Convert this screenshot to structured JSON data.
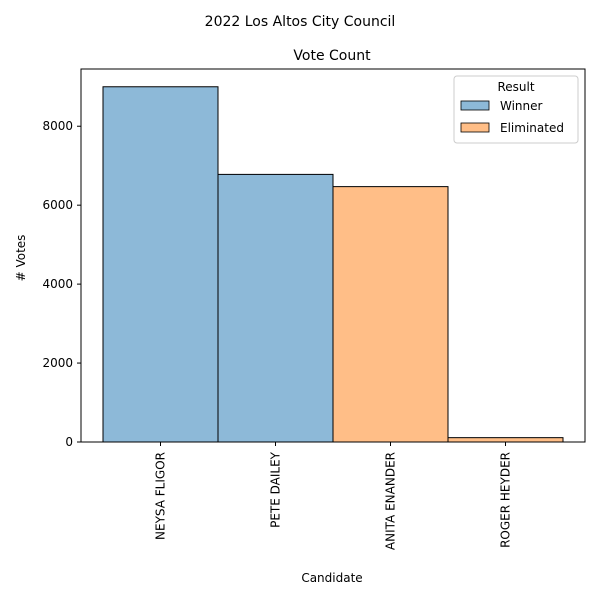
{
  "chart_data": {
    "type": "bar",
    "suptitle": "2022 Los Altos City Council",
    "title": "Vote Count",
    "xlabel": "Candidate",
    "ylabel": "# Votes",
    "categories": [
      "NEYSA FLIGOR",
      "PETE DAILEY",
      "ANITA ENANDER",
      "ROGER HEYDER"
    ],
    "values": [
      9000,
      6780,
      6470,
      110
    ],
    "result": [
      "Winner",
      "Winner",
      "Eliminated",
      "Eliminated"
    ],
    "ylim": [
      0,
      9450
    ],
    "yticks": [
      0,
      2000,
      4000,
      6000,
      8000
    ],
    "grid": false,
    "legend": {
      "title": "Result",
      "placement": "top-right",
      "entries": [
        {
          "name": "Winner",
          "color": "#8db9d8"
        },
        {
          "name": "Eliminated",
          "color": "#ffbe87"
        }
      ]
    }
  }
}
